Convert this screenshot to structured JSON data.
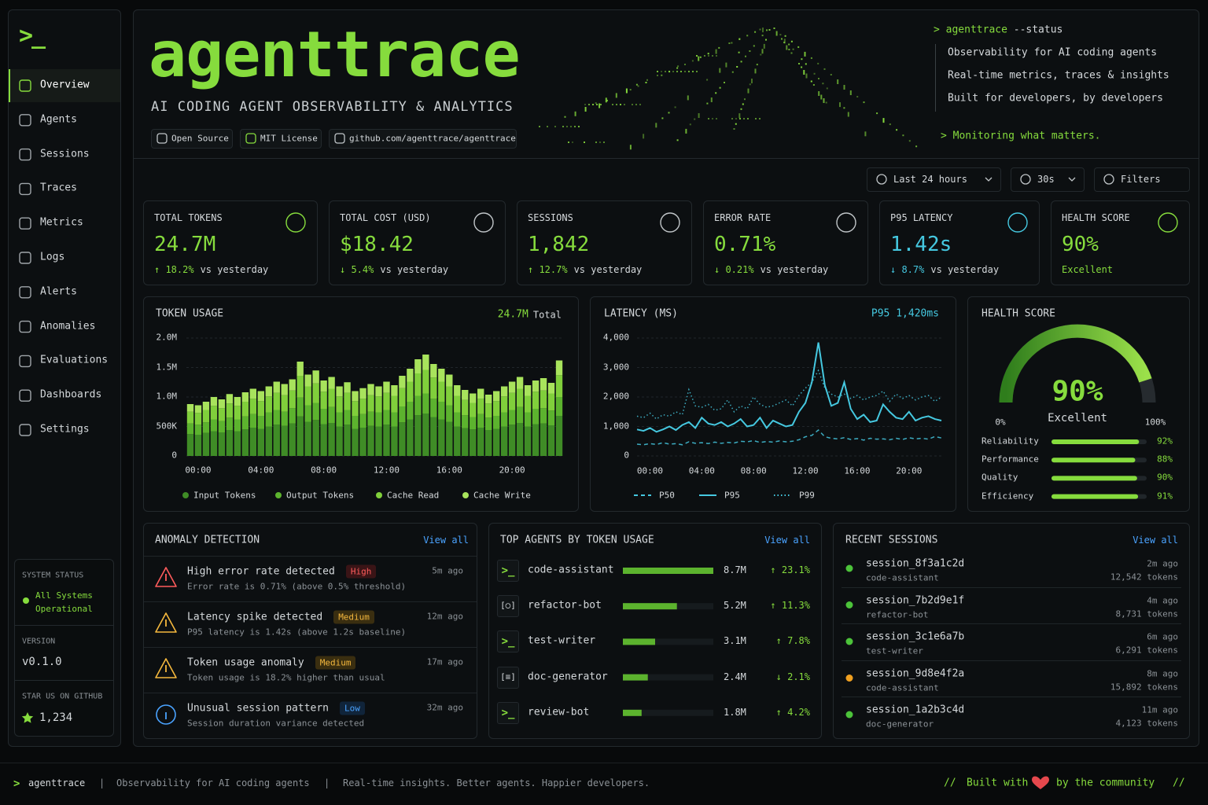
{
  "sidebar": {
    "logo": ">_",
    "nav": [
      "Overview",
      "Agents",
      "Sessions",
      "Traces",
      "Metrics",
      "Logs",
      "Alerts",
      "Anomalies",
      "Evaluations",
      "Dashboards",
      "Settings"
    ],
    "active": 0,
    "system_status": {
      "label": "SYSTEM STATUS",
      "status": "All Systems Operational",
      "color": "#86dc3d"
    },
    "version": {
      "label": "VERSION",
      "value": "v0.1.0"
    },
    "github": {
      "label": "STAR US ON GITHUB",
      "stars": "1,234"
    }
  },
  "header": {
    "title": "agenttrace",
    "subtitle": "AI CODING AGENT OBSERVABILITY & ANALYTICS",
    "badges": [
      "Open Source",
      "MIT License",
      "github.com/agenttrace/agenttrace"
    ],
    "terminal": {
      "prompt": "> agenttrace",
      "args": "--status",
      "lines": [
        "Observability for AI coding agents",
        "Real-time metrics, traces & insights",
        "Built for developers, by developers"
      ],
      "footer": "> Monitoring what matters."
    }
  },
  "controls": {
    "time_range": "Last 24 hours",
    "refresh": "30s",
    "filters": "Filters"
  },
  "kpis": [
    {
      "label": "TOTAL TOKENS",
      "value": "24.7M",
      "change": "↑ 18.2%",
      "compare": "vs yesterday",
      "color": "#86dc3d"
    },
    {
      "label": "TOTAL COST (USD)",
      "value": "$18.42",
      "change": "↓ 5.4%",
      "compare": "vs yesterday",
      "color": "#86dc3d"
    },
    {
      "label": "SESSIONS",
      "value": "1,842",
      "change": "↑ 12.7%",
      "compare": "vs yesterday",
      "color": "#86dc3d"
    },
    {
      "label": "ERROR RATE",
      "value": "0.71%",
      "change": "↓ 0.21%",
      "compare": "vs yesterday",
      "color": "#86dc3d"
    },
    {
      "label": "P95 LATENCY",
      "value": "1.42s",
      "change": "↓ 8.7%",
      "compare": "vs yesterday",
      "color": "#45c8e0"
    },
    {
      "label": "HEALTH SCORE",
      "value": "90%",
      "change": "Excellent",
      "color": "#86dc3d"
    }
  ],
  "token_usage": {
    "type": "bar",
    "stacked": true,
    "title": "TOKEN USAGE",
    "total": "24.7M",
    "total_label": "Total",
    "categories": [
      null,
      "00:00",
      null,
      null,
      null,
      null,
      null,
      null,
      null,
      "04:00",
      null,
      null,
      null,
      null,
      null,
      null,
      null,
      "08:00",
      null,
      null,
      null,
      null,
      null,
      null,
      null,
      "12:00",
      null,
      null,
      null,
      null,
      null,
      null,
      null,
      "16:00",
      null,
      null,
      null,
      null,
      null,
      null,
      null,
      "20:00",
      null,
      null,
      null,
      null,
      null,
      null
    ],
    "series": [
      {
        "name": "Input Tokens",
        "color": "#3f8c26",
        "values": [
          370000,
          360000,
          390000,
          420000,
          400000,
          440000,
          420000,
          450000,
          480000,
          460000,
          500000,
          530000,
          510000,
          550000,
          670000,
          580000,
          610000,
          540000,
          560000,
          500000,
          530000,
          460000,
          480000,
          510000,
          500000,
          530000,
          500000,
          570000,
          620000,
          690000,
          720000,
          660000,
          620000,
          580000,
          500000,
          470000,
          450000,
          480000,
          440000,
          460000,
          500000,
          530000,
          560000,
          500000,
          540000,
          550000,
          520000,
          680000
        ]
      },
      {
        "name": "Output Tokens",
        "color": "#5cb32e",
        "values": [
          180000,
          170000,
          180000,
          200000,
          190000,
          210000,
          200000,
          220000,
          230000,
          220000,
          240000,
          250000,
          240000,
          260000,
          320000,
          280000,
          290000,
          260000,
          270000,
          240000,
          250000,
          220000,
          230000,
          240000,
          240000,
          250000,
          240000,
          270000,
          300000,
          330000,
          340000,
          310000,
          300000,
          280000,
          240000,
          220000,
          210000,
          230000,
          210000,
          220000,
          240000,
          250000,
          270000,
          240000,
          260000,
          260000,
          250000,
          320000
        ]
      },
      {
        "name": "Cache Read",
        "color": "#80cf3b",
        "values": [
          200000,
          200000,
          210000,
          230000,
          220000,
          240000,
          230000,
          250000,
          260000,
          250000,
          270000,
          290000,
          280000,
          300000,
          370000,
          320000,
          330000,
          290000,
          310000,
          270000,
          290000,
          250000,
          260000,
          280000,
          270000,
          290000,
          280000,
          310000,
          340000,
          380000,
          400000,
          360000,
          340000,
          320000,
          280000,
          260000,
          240000,
          260000,
          240000,
          250000,
          270000,
          290000,
          310000,
          280000,
          290000,
          300000,
          290000,
          370000
        ]
      },
      {
        "name": "Cache Write",
        "color": "#a8e35c",
        "values": [
          130000,
          130000,
          140000,
          150000,
          150000,
          160000,
          150000,
          160000,
          170000,
          170000,
          170000,
          190000,
          190000,
          190000,
          240000,
          200000,
          220000,
          190000,
          200000,
          170000,
          180000,
          170000,
          180000,
          190000,
          170000,
          190000,
          180000,
          210000,
          220000,
          240000,
          260000,
          230000,
          220000,
          200000,
          180000,
          170000,
          160000,
          170000,
          150000,
          170000,
          170000,
          190000,
          200000,
          180000,
          190000,
          210000,
          180000,
          250000
        ]
      }
    ],
    "ylim": [
      0,
      2000000
    ],
    "yticks": [
      0,
      {
        "value": 500000,
        "label": "500K"
      },
      {
        "value": 1000000,
        "label": "1.0M"
      },
      {
        "value": 1500000,
        "label": "1.5M"
      },
      {
        "value": 2000000,
        "label": "2.0M"
      }
    ],
    "grid": true
  },
  "latency": {
    "type": "line",
    "title": "LATENCY (MS)",
    "highlight": "P95 1,420ms",
    "categories": [
      null,
      null,
      "00:00",
      null,
      null,
      null,
      null,
      null,
      null,
      null,
      "04:00",
      null,
      null,
      null,
      null,
      null,
      null,
      null,
      "08:00",
      null,
      null,
      null,
      null,
      null,
      null,
      null,
      "12:00",
      null,
      null,
      null,
      null,
      null,
      null,
      null,
      "16:00",
      null,
      null,
      null,
      null,
      null,
      null,
      null,
      "20:00",
      null,
      null,
      null,
      null,
      null
    ],
    "series": [
      {
        "name": "P50",
        "color": "#45c8e0",
        "dash": "dashed",
        "values": [
          400,
          380,
          420,
          390,
          450,
          400,
          420,
          380,
          480,
          430,
          450,
          420,
          470,
          430,
          460,
          440,
          500,
          480,
          520,
          460,
          490,
          470,
          510,
          480,
          500,
          550,
          650,
          700,
          880,
          650,
          600,
          580,
          620,
          560,
          590,
          540,
          600,
          570,
          580,
          550,
          600,
          560,
          620,
          580,
          600,
          570,
          660,
          610
        ]
      },
      {
        "name": "P95",
        "color": "#45c8e0",
        "dash": "solid",
        "values": [
          900,
          850,
          950,
          820,
          900,
          1000,
          880,
          1050,
          1150,
          950,
          1300,
          1100,
          1050,
          1150,
          1000,
          1100,
          1250,
          1000,
          1050,
          1300,
          950,
          1200,
          1100,
          1000,
          1050,
          1500,
          1800,
          2500,
          3850,
          2400,
          1700,
          1800,
          2500,
          1600,
          1250,
          1400,
          1150,
          1200,
          1750,
          1500,
          1300,
          1250,
          1500,
          1200,
          1300,
          1350,
          1250,
          1200
        ]
      },
      {
        "name": "P99",
        "color": "#45c8e0",
        "dash": "dotted",
        "values": [
          1350,
          1300,
          1450,
          1250,
          1400,
          1350,
          1500,
          1400,
          2250,
          1700,
          1650,
          1750,
          1550,
          1600,
          1900,
          1500,
          1700,
          1600,
          2000,
          1750,
          1650,
          1700,
          1800,
          1900,
          1700,
          2050,
          2300,
          2500,
          2900,
          2300,
          2100,
          2000,
          2100,
          1950,
          2050,
          1900,
          2000,
          2050,
          2200,
          1850,
          2100,
          1950,
          2050,
          1900,
          2000,
          2050,
          1850,
          2000
        ]
      }
    ],
    "ylim": [
      0,
      4000
    ],
    "yticks": [
      0,
      {
        "value": 1000,
        "label": "1,000"
      },
      {
        "value": 2000,
        "label": "2,000"
      },
      {
        "value": 3000,
        "label": "3,000"
      },
      {
        "value": 4000,
        "label": "4,000"
      }
    ],
    "grid": true
  },
  "health": {
    "type": "gauge",
    "title": "HEALTH SCORE",
    "value": 90,
    "value_label": "90%",
    "status": "Excellent",
    "min": {
      "value": 0,
      "label": "0%"
    },
    "max": {
      "value": 100,
      "label": "100%"
    },
    "color": "#86dc3d",
    "metrics": [
      {
        "name": "Reliability",
        "value": 92,
        "value_label": "92%"
      },
      {
        "name": "Performance",
        "value": 88,
        "value_label": "88%"
      },
      {
        "name": "Quality",
        "value": 90,
        "value_label": "90%"
      },
      {
        "name": "Efficiency",
        "value": 91,
        "value_label": "91%"
      }
    ]
  },
  "anomalies": {
    "title": "ANOMALY DETECTION",
    "view_all": "View all",
    "items": [
      {
        "title": "High error rate detected",
        "severity": "High",
        "level": "error",
        "description": "Error rate is 0.71% (above 0.5% threshold)",
        "time": "5m ago"
      },
      {
        "title": "Latency spike detected",
        "severity": "Medium",
        "level": "warning",
        "description": "P95 latency is 1.42s (above 1.2s baseline)",
        "time": "12m ago"
      },
      {
        "title": "Token usage anomaly",
        "severity": "Medium",
        "level": "warning",
        "description": "Token usage is 18.2% higher than usual",
        "time": "17m ago"
      },
      {
        "title": "Unusual session pattern",
        "severity": "Low",
        "level": "info",
        "description": "Session duration variance detected",
        "time": "32m ago"
      }
    ]
  },
  "agents": {
    "title": "TOP AGENTS BY TOKEN USAGE",
    "view_all": "View all",
    "color": "#5cb32e",
    "items": [
      {
        "icon": ">_",
        "name": "code-assistant",
        "tokens": 8700000,
        "tokens_label": "8.7M",
        "change": "↑ 23.1%"
      },
      {
        "icon": "[○]",
        "name": "refactor-bot",
        "tokens": 5200000,
        "tokens_label": "5.2M",
        "change": "↑ 11.3%"
      },
      {
        "icon": ">_",
        "name": "test-writer",
        "tokens": 3100000,
        "tokens_label": "3.1M",
        "change": "↑ 7.8%"
      },
      {
        "icon": "[≡]",
        "name": "doc-generator",
        "tokens": 2400000,
        "tokens_label": "2.4M",
        "change": "↓ 2.1%"
      },
      {
        "icon": ">_",
        "name": "review-bot",
        "tokens": 1800000,
        "tokens_label": "1.8M",
        "change": "↑ 4.2%"
      }
    ]
  },
  "sessions": {
    "title": "RECENT SESSIONS",
    "view_all": "View all",
    "items": [
      {
        "id": "session_8f3a1c2d",
        "agent": "code-assistant",
        "time": "2m ago",
        "tokens": "12,542 tokens",
        "status_color": "#4cc33a"
      },
      {
        "id": "session_7b2d9e1f",
        "agent": "refactor-bot",
        "time": "4m ago",
        "tokens": "8,731 tokens",
        "status_color": "#4cc33a"
      },
      {
        "id": "session_3c1e6a7b",
        "agent": "test-writer",
        "time": "6m ago",
        "tokens": "6,291 tokens",
        "status_color": "#4cc33a"
      },
      {
        "id": "session_9d8e4f2a",
        "agent": "code-assistant",
        "time": "8m ago",
        "tokens": "15,892 tokens",
        "status_color": "#f0a020"
      },
      {
        "id": "session_1a2b3c4d",
        "agent": "doc-generator",
        "time": "11m ago",
        "tokens": "4,123 tokens",
        "status_color": "#4cc33a"
      }
    ]
  },
  "footer": {
    "prompt": ">",
    "name": "agenttrace",
    "separator": "|",
    "tagline": "Observability for AI coding agents",
    "slogan": "Real-time insights. Better agents. Happier developers.",
    "comment": "//",
    "credit_before": "Built with",
    "credit_after": "by the community"
  }
}
